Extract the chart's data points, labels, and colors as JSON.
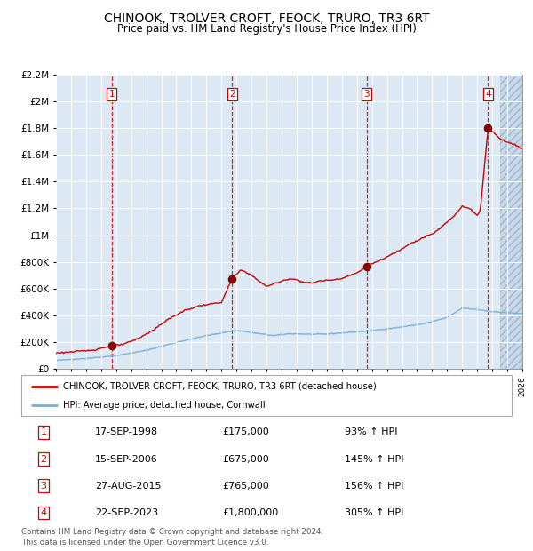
{
  "title": "CHINOOK, TROLVER CROFT, FEOCK, TRURO, TR3 6RT",
  "subtitle": "Price paid vs. HM Land Registry's House Price Index (HPI)",
  "background_color": "#dce9f5",
  "sale_dates_decimal": [
    1998.71,
    2006.71,
    2015.65,
    2023.72
  ],
  "sale_prices": [
    175000,
    675000,
    765000,
    1800000
  ],
  "sale_labels": [
    "1",
    "2",
    "3",
    "4"
  ],
  "table_rows": [
    [
      "1",
      "17-SEP-1998",
      "£175,000",
      "93% ↑ HPI"
    ],
    [
      "2",
      "15-SEP-2006",
      "£675,000",
      "145% ↑ HPI"
    ],
    [
      "3",
      "27-AUG-2015",
      "£765,000",
      "156% ↑ HPI"
    ],
    [
      "4",
      "22-SEP-2023",
      "£1,800,000",
      "305% ↑ HPI"
    ]
  ],
  "legend_entries": [
    "CHINOOK, TROLVER CROFT, FEOCK, TRURO, TR3 6RT (detached house)",
    "HPI: Average price, detached house, Cornwall"
  ],
  "footer_text": "Contains HM Land Registry data © Crown copyright and database right 2024.\nThis data is licensed under the Open Government Licence v3.0.",
  "ylim": [
    0,
    2200000
  ],
  "yticks": [
    0,
    200000,
    400000,
    600000,
    800000,
    1000000,
    1200000,
    1400000,
    1600000,
    1800000,
    2000000,
    2200000
  ],
  "house_line_color": "#cc0000",
  "hpi_line_color": "#7aaed6",
  "sale_marker_color": "#880000",
  "vline_color": "#cc0000",
  "grid_color": "#ffffff",
  "hpi_anchors": [
    [
      1995.0,
      65000
    ],
    [
      1997.0,
      80000
    ],
    [
      1999.0,
      100000
    ],
    [
      2001.0,
      140000
    ],
    [
      2003.0,
      200000
    ],
    [
      2005.0,
      250000
    ],
    [
      2007.0,
      290000
    ],
    [
      2008.5,
      265000
    ],
    [
      2009.5,
      250000
    ],
    [
      2010.5,
      265000
    ],
    [
      2012.0,
      260000
    ],
    [
      2013.0,
      262000
    ],
    [
      2015.0,
      278000
    ],
    [
      2016.0,
      288000
    ],
    [
      2018.0,
      315000
    ],
    [
      2019.5,
      340000
    ],
    [
      2021.0,
      385000
    ],
    [
      2022.0,
      455000
    ],
    [
      2023.0,
      445000
    ],
    [
      2024.0,
      430000
    ],
    [
      2024.5,
      425000
    ],
    [
      2026.0,
      415000
    ]
  ],
  "house_anchors": [
    [
      1995.0,
      120000
    ],
    [
      1996.0,
      128000
    ],
    [
      1997.5,
      143000
    ],
    [
      1998.71,
      175000
    ],
    [
      1999.5,
      185000
    ],
    [
      2000.5,
      230000
    ],
    [
      2001.5,
      295000
    ],
    [
      2002.5,
      375000
    ],
    [
      2003.5,
      435000
    ],
    [
      2004.5,
      472000
    ],
    [
      2005.5,
      490000
    ],
    [
      2006.0,
      498000
    ],
    [
      2006.71,
      675000
    ],
    [
      2007.3,
      740000
    ],
    [
      2007.9,
      710000
    ],
    [
      2008.5,
      655000
    ],
    [
      2009.0,
      618000
    ],
    [
      2009.5,
      638000
    ],
    [
      2010.0,
      655000
    ],
    [
      2010.5,
      675000
    ],
    [
      2011.0,
      668000
    ],
    [
      2011.5,
      648000
    ],
    [
      2012.0,
      642000
    ],
    [
      2012.5,
      658000
    ],
    [
      2013.0,
      662000
    ],
    [
      2013.5,
      668000
    ],
    [
      2014.0,
      678000
    ],
    [
      2014.5,
      698000
    ],
    [
      2015.0,
      718000
    ],
    [
      2015.65,
      765000
    ],
    [
      2016.0,
      788000
    ],
    [
      2016.5,
      808000
    ],
    [
      2017.0,
      838000
    ],
    [
      2017.5,
      868000
    ],
    [
      2018.0,
      898000
    ],
    [
      2018.5,
      938000
    ],
    [
      2019.0,
      958000
    ],
    [
      2019.5,
      988000
    ],
    [
      2020.0,
      1008000
    ],
    [
      2020.5,
      1048000
    ],
    [
      2021.0,
      1098000
    ],
    [
      2021.5,
      1148000
    ],
    [
      2022.0,
      1218000
    ],
    [
      2022.5,
      1198000
    ],
    [
      2023.0,
      1148000
    ],
    [
      2023.2,
      1178000
    ],
    [
      2023.72,
      1800000
    ],
    [
      2024.0,
      1775000
    ],
    [
      2024.3,
      1745000
    ],
    [
      2024.6,
      1715000
    ],
    [
      2025.0,
      1695000
    ],
    [
      2025.5,
      1675000
    ],
    [
      2026.0,
      1645000
    ]
  ],
  "hatch_start": 2024.5,
  "xmin": 1995,
  "xmax": 2026
}
